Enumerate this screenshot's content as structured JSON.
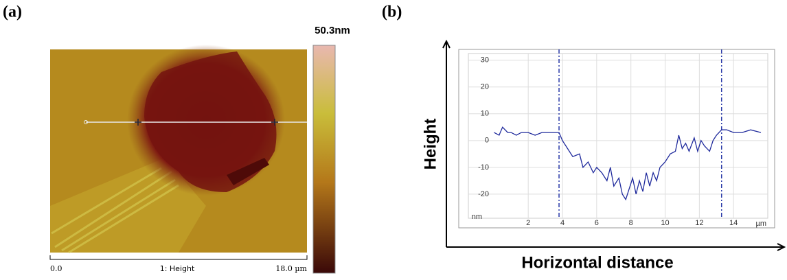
{
  "panel_a": {
    "label": "(a)",
    "colorbar_max": "50.3nm",
    "scale_start": "0.0",
    "scale_title": "1: Height",
    "scale_end": "18.0 µm"
  },
  "chart_data": {
    "type": "line",
    "label": "(b)",
    "y_label": "Height",
    "x_label": "Horizontal distance",
    "x_unit": "µm",
    "y_unit": "nm",
    "x": [
      0,
      0.3,
      0.5,
      0.8,
      1.0,
      1.3,
      1.6,
      2.0,
      2.4,
      2.8,
      3.2,
      3.6,
      3.8,
      4.0,
      4.3,
      4.6,
      5.0,
      5.2,
      5.5,
      5.8,
      6.0,
      6.3,
      6.6,
      6.8,
      7.0,
      7.3,
      7.5,
      7.7,
      7.9,
      8.1,
      8.3,
      8.5,
      8.7,
      8.9,
      9.1,
      9.3,
      9.5,
      9.7,
      10.0,
      10.3,
      10.6,
      10.8,
      11.0,
      11.2,
      11.4,
      11.7,
      11.9,
      12.1,
      12.3,
      12.6,
      12.8,
      13.0,
      13.3,
      13.6,
      14.0,
      14.5,
      15.0,
      15.6
    ],
    "series": [
      {
        "name": "Height",
        "color": "#1f2a9c",
        "values": [
          3,
          2,
          5,
          3,
          3,
          2,
          3,
          3,
          2,
          3,
          3,
          3,
          3,
          0,
          -3,
          -6,
          -5,
          -10,
          -8,
          -12,
          -10,
          -12,
          -15,
          -10,
          -17,
          -14,
          -20,
          -22,
          -18,
          -14,
          -20,
          -15,
          -19,
          -12,
          -17,
          -12,
          -15,
          -10,
          -8,
          -5,
          -4,
          2,
          -3,
          -1,
          -4,
          1,
          -4,
          0,
          -2,
          -4,
          0,
          2,
          4,
          4,
          3,
          3,
          4,
          3
        ]
      }
    ],
    "cursor_x": [
      3.8,
      13.3
    ],
    "xlim": [
      -1.5,
      16
    ],
    "ylim": [
      -29,
      32.5
    ],
    "xticks": [
      2,
      4,
      6,
      8,
      10,
      12,
      14
    ],
    "yticks": [
      30,
      20,
      10,
      0,
      -10,
      -20
    ],
    "grid": true
  }
}
